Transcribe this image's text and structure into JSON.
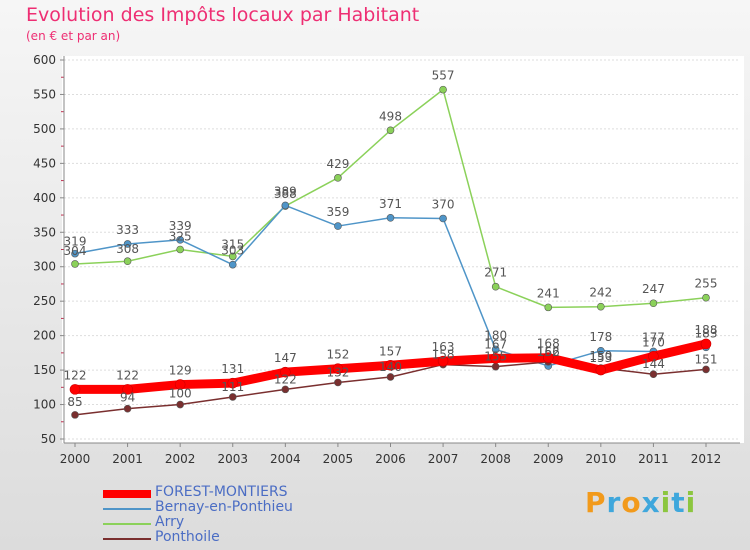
{
  "title": "Evolution des Impôts locaux par Habitant",
  "subtitle": "(en € et par an)",
  "logo": {
    "text": "Proxiti",
    "letters": [
      "P",
      "r",
      "o",
      "x",
      "i",
      "t",
      "i"
    ],
    "colors": [
      "#f29a1b",
      "#3fa7dc",
      "#f29a1b",
      "#3fa7dc",
      "#8cc63f",
      "#3fa7dc",
      "#8cc63f"
    ]
  },
  "chart_data": {
    "type": "line",
    "title": "Evolution des Impôts locaux par Habitant",
    "ylabel": "(en € et par an)",
    "xlabel": "",
    "x": [
      "2000",
      "2001",
      "2002",
      "2003",
      "2004",
      "2005",
      "2006",
      "2007",
      "2008",
      "2009",
      "2010",
      "2011",
      "2012"
    ],
    "ylim": [
      50,
      600
    ],
    "yticks": [
      "50",
      "100",
      "150",
      "200",
      "250",
      "300",
      "350",
      "400",
      "450",
      "500",
      "550",
      "600"
    ],
    "grid": true,
    "legend": "bottom-left",
    "series": [
      {
        "name": "FOREST-MONTIERS",
        "color": "#ff0000",
        "values": [
          122,
          122,
          129,
          131,
          147,
          152,
          157,
          163,
          167,
          168,
          150,
          170,
          188
        ],
        "labels": [
          "122",
          "122",
          "129",
          "131",
          "147",
          "152",
          "157",
          "163",
          "167",
          "168",
          "150",
          "170",
          "188"
        ]
      },
      {
        "name": "Bernay-en-Ponthieu",
        "color": "#4f95c8",
        "values": [
          319,
          333,
          339,
          303,
          389,
          359,
          371,
          370,
          180,
          156,
          178,
          177,
          183
        ],
        "labels": [
          "319",
          "333",
          "339",
          "303",
          "389",
          "359",
          "371",
          "370",
          "180",
          "156",
          "178",
          "177",
          "183"
        ]
      },
      {
        "name": "Arry",
        "color": "#8bd15a",
        "values": [
          304,
          308,
          325,
          315,
          388,
          429,
          498,
          557,
          271,
          241,
          242,
          247,
          255
        ],
        "labels": [
          "304",
          "308",
          "325",
          "315",
          "388",
          "429",
          "498",
          "557",
          "271",
          "241",
          "242",
          "247",
          "255"
        ]
      },
      {
        "name": "Ponthoile",
        "color": "#7a2f2f",
        "values": [
          85,
          94,
          100,
          111,
          122,
          132,
          140,
          158,
          155,
          162,
          153,
          144,
          151
        ],
        "labels": [
          "85",
          "94",
          "100",
          "111",
          "122",
          "132",
          "140",
          "158",
          "155",
          "162",
          "153",
          "144",
          "151"
        ]
      }
    ]
  }
}
